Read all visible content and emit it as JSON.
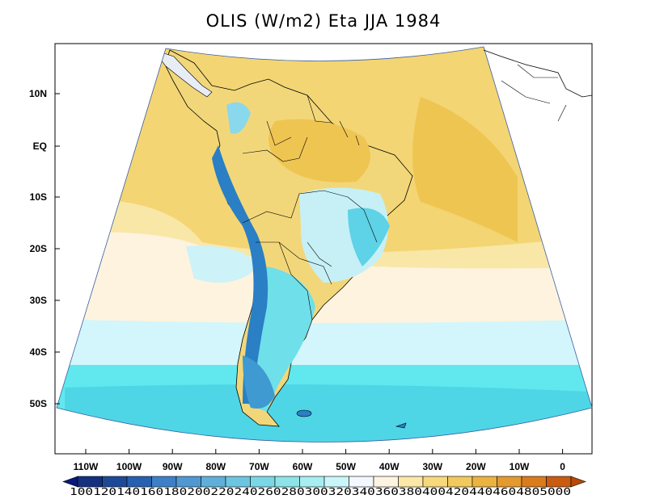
{
  "title": "OLIS (W/m2) Eta JJA 1984",
  "map": {
    "region": "South America",
    "projection_edge": "Lambert conformal cone",
    "lat_labels": [
      "10N",
      "EQ",
      "10S",
      "20S",
      "30S",
      "40S",
      "50S"
    ],
    "lon_labels": [
      "110W",
      "100W",
      "90W",
      "80W",
      "70W",
      "60W",
      "50W",
      "40W",
      "30W",
      "20W",
      "10W",
      "0"
    ],
    "lon_range": [
      -115,
      5
    ],
    "lat_range": [
      -60,
      18
    ]
  },
  "colorbar": {
    "levels_text": "1001201401601802002202402602803003203403603804004204404604805000",
    "levels": [
      100,
      120,
      140,
      160,
      180,
      200,
      220,
      240,
      260,
      280,
      300,
      320,
      340,
      360,
      380,
      400,
      420,
      440,
      460,
      480,
      500
    ],
    "colors": [
      "#0a1a78",
      "#14307f",
      "#1c4a98",
      "#2860b0",
      "#3e80c8",
      "#4f98d2",
      "#5eb0da",
      "#6cc6e0",
      "#7ad8e6",
      "#8de4e8",
      "#a6eef0",
      "#c9f6f8",
      "#f3f7ff",
      "#fdf4e2",
      "#fbe7a6",
      "#f7d97c",
      "#f2c95c",
      "#ebb340",
      "#e49a2e",
      "#d97c1c",
      "#c95c10",
      "#b84806"
    ]
  },
  "field": {
    "ocean_north": "#f3d573",
    "ocean_band_cream": "#fdf3df",
    "ocean_band_lightcyan": "#d2f6fb",
    "ocean_south": "#61e8ee",
    "land_low": "#f2d77a",
    "land_cool": "#c6f0f6",
    "andes": "#2a7fc5"
  }
}
